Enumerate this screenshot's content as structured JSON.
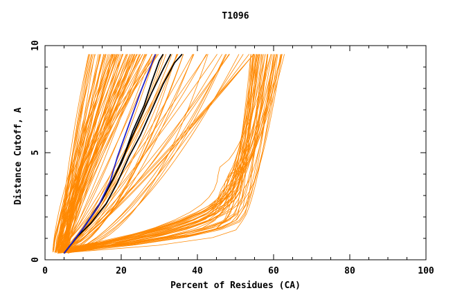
{
  "chart_data": {
    "type": "line",
    "title": "T1096",
    "xlabel": "Percent of Residues (CA)",
    "ylabel": "Distance Cutoff, A",
    "xlim": [
      0,
      100
    ],
    "ylim": [
      0,
      10
    ],
    "x_ticks": [
      "0",
      "20",
      "40",
      "60",
      "80",
      "100"
    ],
    "y_ticks": [
      "0",
      "5",
      "10"
    ],
    "grid": false,
    "legend": "none",
    "colors": {
      "models": "#ff8800",
      "highlight_black": "#000000",
      "highlight_blue": "#2222cc",
      "axes": "#000000"
    },
    "series": [
      {
        "color": "#000000",
        "points": [
          [
            5,
            0.3
          ],
          [
            8,
            1.0
          ],
          [
            11,
            1.7
          ],
          [
            14,
            2.5
          ],
          [
            17,
            3.5
          ],
          [
            20,
            4.5
          ],
          [
            22,
            5.4
          ],
          [
            25,
            6.6
          ],
          [
            28,
            7.8
          ],
          [
            31,
            8.9
          ],
          [
            33,
            9.6
          ]
        ]
      },
      {
        "color": "#000000",
        "points": [
          [
            5,
            0.3
          ],
          [
            8,
            1.0
          ],
          [
            12,
            1.7
          ],
          [
            16,
            2.6
          ],
          [
            19,
            3.6
          ],
          [
            22,
            4.8
          ],
          [
            25,
            5.8
          ],
          [
            28,
            7.0
          ],
          [
            31,
            8.2
          ],
          [
            34,
            9.2
          ],
          [
            36,
            9.6
          ]
        ]
      },
      {
        "color": "#000000",
        "points": [
          [
            5,
            0.3
          ],
          [
            9,
            1.2
          ],
          [
            12,
            2.0
          ],
          [
            15,
            2.8
          ],
          [
            18,
            3.8
          ],
          [
            21,
            5.0
          ],
          [
            23,
            6.0
          ],
          [
            26,
            7.2
          ],
          [
            28,
            8.3
          ],
          [
            30,
            9.3
          ],
          [
            31,
            9.6
          ]
        ]
      },
      {
        "color": "#2222cc",
        "points": [
          [
            5,
            0.3
          ],
          [
            8,
            1.0
          ],
          [
            11,
            1.7
          ],
          [
            14,
            2.5
          ],
          [
            17,
            3.6
          ],
          [
            19,
            4.8
          ],
          [
            21,
            5.8
          ],
          [
            23,
            6.8
          ],
          [
            25,
            7.8
          ],
          [
            27,
            8.7
          ],
          [
            29,
            9.6
          ]
        ]
      }
    ],
    "bundles": [
      {
        "color": "#ff8800",
        "count": 70,
        "start_x": [
          2,
          6
        ],
        "end_x": [
          11,
          30
        ],
        "shape": "steep"
      },
      {
        "color": "#ff8800",
        "count": 30,
        "start_x": [
          3,
          6
        ],
        "end_x": [
          28,
          55
        ],
        "shape": "medium"
      },
      {
        "color": "#ff8800",
        "count": 45,
        "start_x": [
          3,
          7
        ],
        "mid_x": [
          48,
          57
        ],
        "end_x": [
          54,
          63
        ],
        "shape": "flat"
      }
    ]
  }
}
